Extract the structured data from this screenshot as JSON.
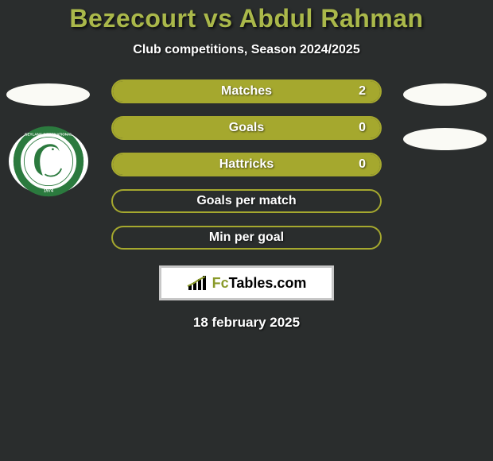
{
  "title": "Bezecourt vs Abdul Rahman",
  "subtitle": "Club competitions, Season 2024/2025",
  "date": "18 february 2025",
  "colors": {
    "accent": "#aab84a",
    "bar_fill": "#a5a82e",
    "bar_border": "#a5a82e",
    "background": "#2a2d2d",
    "title_color": "#aab84a",
    "text_white": "#ffffff",
    "logo_border": "#c7c7c7",
    "ellipse": "#fafaf5"
  },
  "stats": [
    {
      "label": "Matches",
      "value": "2",
      "has_value": true,
      "fill_pct": 100
    },
    {
      "label": "Goals",
      "value": "0",
      "has_value": true,
      "fill_pct": 100
    },
    {
      "label": "Hattricks",
      "value": "0",
      "has_value": true,
      "fill_pct": 100
    },
    {
      "label": "Goals per match",
      "value": "",
      "has_value": false,
      "fill_pct": 0
    },
    {
      "label": "Min per goal",
      "value": "",
      "has_value": false,
      "fill_pct": 0
    }
  ],
  "logo": {
    "brand_prefix": "Fc",
    "brand_suffix": "Tables.com"
  },
  "player1_badges": {
    "club_name": "Geylang International Football Club",
    "year": "1974",
    "badge_ring_color": "#2b7a3e",
    "badge_inner_bg": "#ffffff"
  }
}
